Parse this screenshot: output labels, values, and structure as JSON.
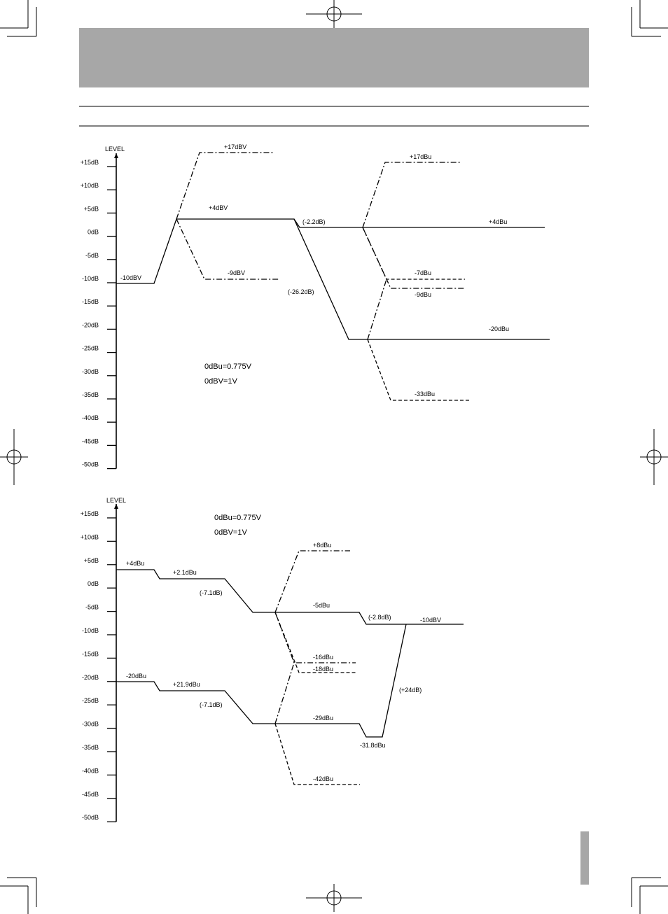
{
  "header_bar_color": "#a7a7a7",
  "side_tab_color": "#a7a7a7",
  "diagram1": {
    "axis_title": "LEVEL",
    "ticks": [
      "+15dB",
      "+10dB",
      "+5dB",
      "0dB",
      "-5dB",
      "-10dB",
      "-15dB",
      "-20dB",
      "-25dB",
      "-30dB",
      "-35dB",
      "-40dB",
      "-45dB",
      "-50dB"
    ],
    "labels": {
      "in": "-10dBV",
      "hi_mid": "+17dBV",
      "nom_mid": "+4dBV",
      "lo_mid": "-9dBV",
      "gain1": "(-2.2dB)",
      "gain2": "(-26.2dB)",
      "hi_out": "+17dBu",
      "nom_out": "+4dBu",
      "lo_out1": "-7dBu",
      "lo_out2": "-9dBu",
      "nom_out2": "-20dBu",
      "lo_out3": "-33dBu"
    },
    "note1": "0dBu=0.775V",
    "note2": "0dBV=1V"
  },
  "diagram2": {
    "axis_title": "LEVEL",
    "ticks": [
      "+15dB",
      "+10dB",
      "+5dB",
      "0dB",
      "-5dB",
      "-10dB",
      "-15dB",
      "-20dB",
      "-25dB",
      "-30dB",
      "-35dB",
      "-40dB",
      "-45dB",
      "-50dB"
    ],
    "labels": {
      "in_a": "+4dBu",
      "a2": "+2.1dBu",
      "a_gain": "(-7.1dB)",
      "a_hi": "+8dBu",
      "a_nom": "-5dBu",
      "a_lo1": "-16dBu",
      "a_lo2": "-18dBu",
      "a_gain2": "(-2.8dB)",
      "out": "-10dBV",
      "in_b": "-20dBu",
      "b2": "+21.9dBu",
      "b_gain": "(-7.1dB)",
      "b_nom": "-29dBu",
      "b_lo": "-42dBu",
      "b_dip": "-31.8dBu",
      "b_gain2": "(+24dB)"
    },
    "note1": "0dBu=0.775V",
    "note2": "0dBV=1V"
  }
}
